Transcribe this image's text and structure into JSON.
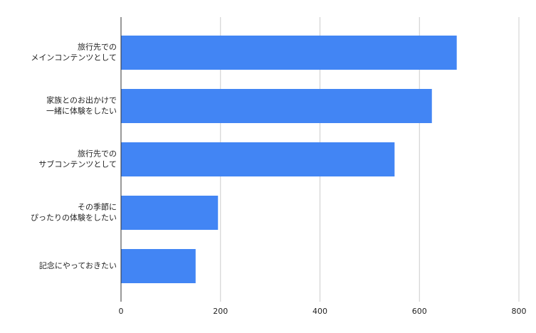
{
  "chart_data": {
    "type": "hbar",
    "categories": [
      [
        "旅行先での",
        "メインコンテンツとして"
      ],
      [
        "家族とのお出かけで",
        "一緒に体験をしたい"
      ],
      [
        "旅行先での",
        "サブコンテンツとして"
      ],
      [
        "その季節に",
        "ぴったりの体験をしたい"
      ],
      [
        "記念にやっておきたい"
      ]
    ],
    "values": [
      675,
      625,
      550,
      195,
      150
    ],
    "color": "#4285f4",
    "xlim": [
      0,
      800
    ],
    "xticks": [
      0,
      200,
      400,
      600,
      800
    ],
    "grid": true
  }
}
